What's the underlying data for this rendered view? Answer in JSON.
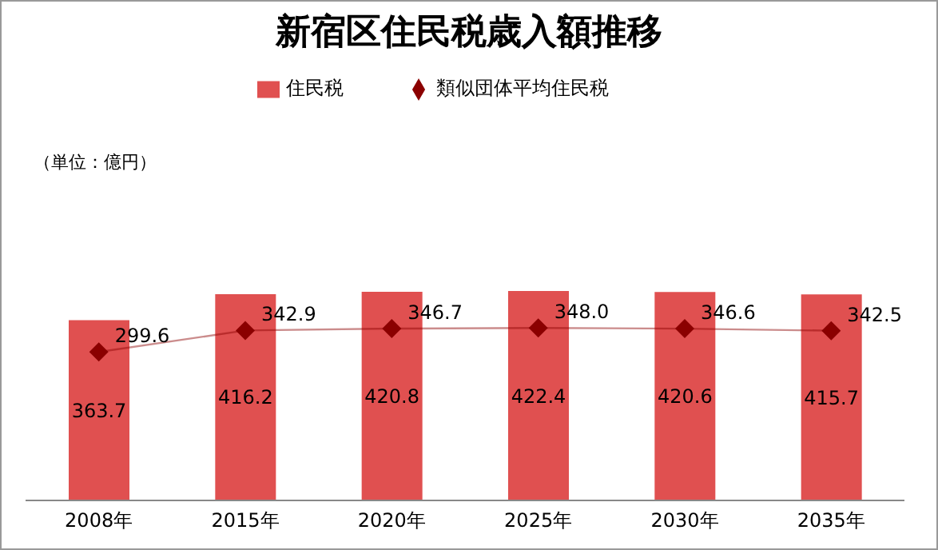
{
  "chart_data": {
    "type": "bar",
    "title": "新宿区住民税歳入額推移",
    "annotations": [
      "（単位：億円）"
    ],
    "categories": [
      "2008年",
      "2015年",
      "2020年",
      "2025年",
      "2030年",
      "2035年"
    ],
    "series": [
      {
        "name": "住民税",
        "color": "#e05050",
        "values": [
          363.7,
          416.2,
          420.8,
          422.4,
          420.6,
          415.7
        ],
        "value_labels": [
          "363.7",
          "416.2",
          "420.8",
          "422.4",
          "420.6",
          "415.7"
        ]
      },
      {
        "name": "類似団体平均住民税",
        "type": "line",
        "color": "#8b0000",
        "marker": "diamond",
        "values": [
          299.6,
          342.9,
          346.7,
          348.0,
          346.6,
          342.5
        ],
        "value_labels": [
          "299.6",
          "342.9",
          "346.7",
          "348.0",
          "346.6",
          "342.5"
        ]
      }
    ],
    "legend": "top",
    "tick_labels": "x"
  }
}
